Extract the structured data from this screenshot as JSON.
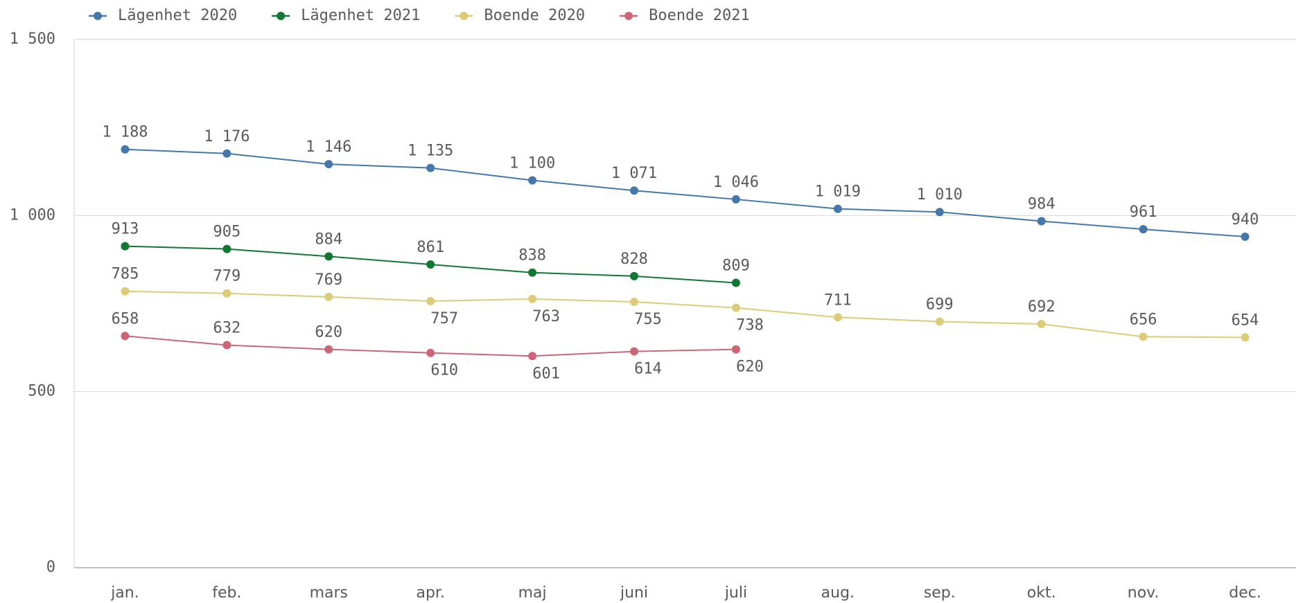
{
  "chart_data": {
    "type": "line",
    "categories": [
      "jan.",
      "feb.",
      "mars",
      "apr.",
      "maj",
      "juni",
      "juli",
      "aug.",
      "sep.",
      "okt.",
      "nov.",
      "dec."
    ],
    "ylim": [
      0,
      1500
    ],
    "yticks": [
      0,
      500,
      {
        "value": 1000,
        "label": "1 000"
      },
      {
        "value": 1500,
        "label": "1 500"
      }
    ],
    "grid": true,
    "legend": "top-left",
    "series": [
      {
        "name": "Lägenhet 2020",
        "color": "#4477aa",
        "values": [
          1188,
          1176,
          1146,
          1135,
          1100,
          1071,
          1046,
          1019,
          1010,
          984,
          961,
          940
        ],
        "value_labels": [
          "1 188",
          "1 176",
          "1 146",
          "1 135",
          "1 100",
          "1 071",
          "1 046",
          "1 019",
          "1 010",
          "984",
          "961",
          "940"
        ]
      },
      {
        "name": "Lägenhet 2021",
        "color": "#117733",
        "values": [
          913,
          905,
          884,
          861,
          838,
          828,
          809,
          null,
          null,
          null,
          null,
          null
        ]
      },
      {
        "name": "Boende 2020",
        "color": "#ddcc77",
        "values": [
          785,
          779,
          769,
          757,
          763,
          755,
          738,
          711,
          699,
          692,
          656,
          654
        ]
      },
      {
        "name": "Boende 2021",
        "color": "#cc6677",
        "values": [
          658,
          632,
          620,
          610,
          601,
          614,
          620,
          null,
          null,
          null,
          null,
          null
        ]
      }
    ]
  }
}
